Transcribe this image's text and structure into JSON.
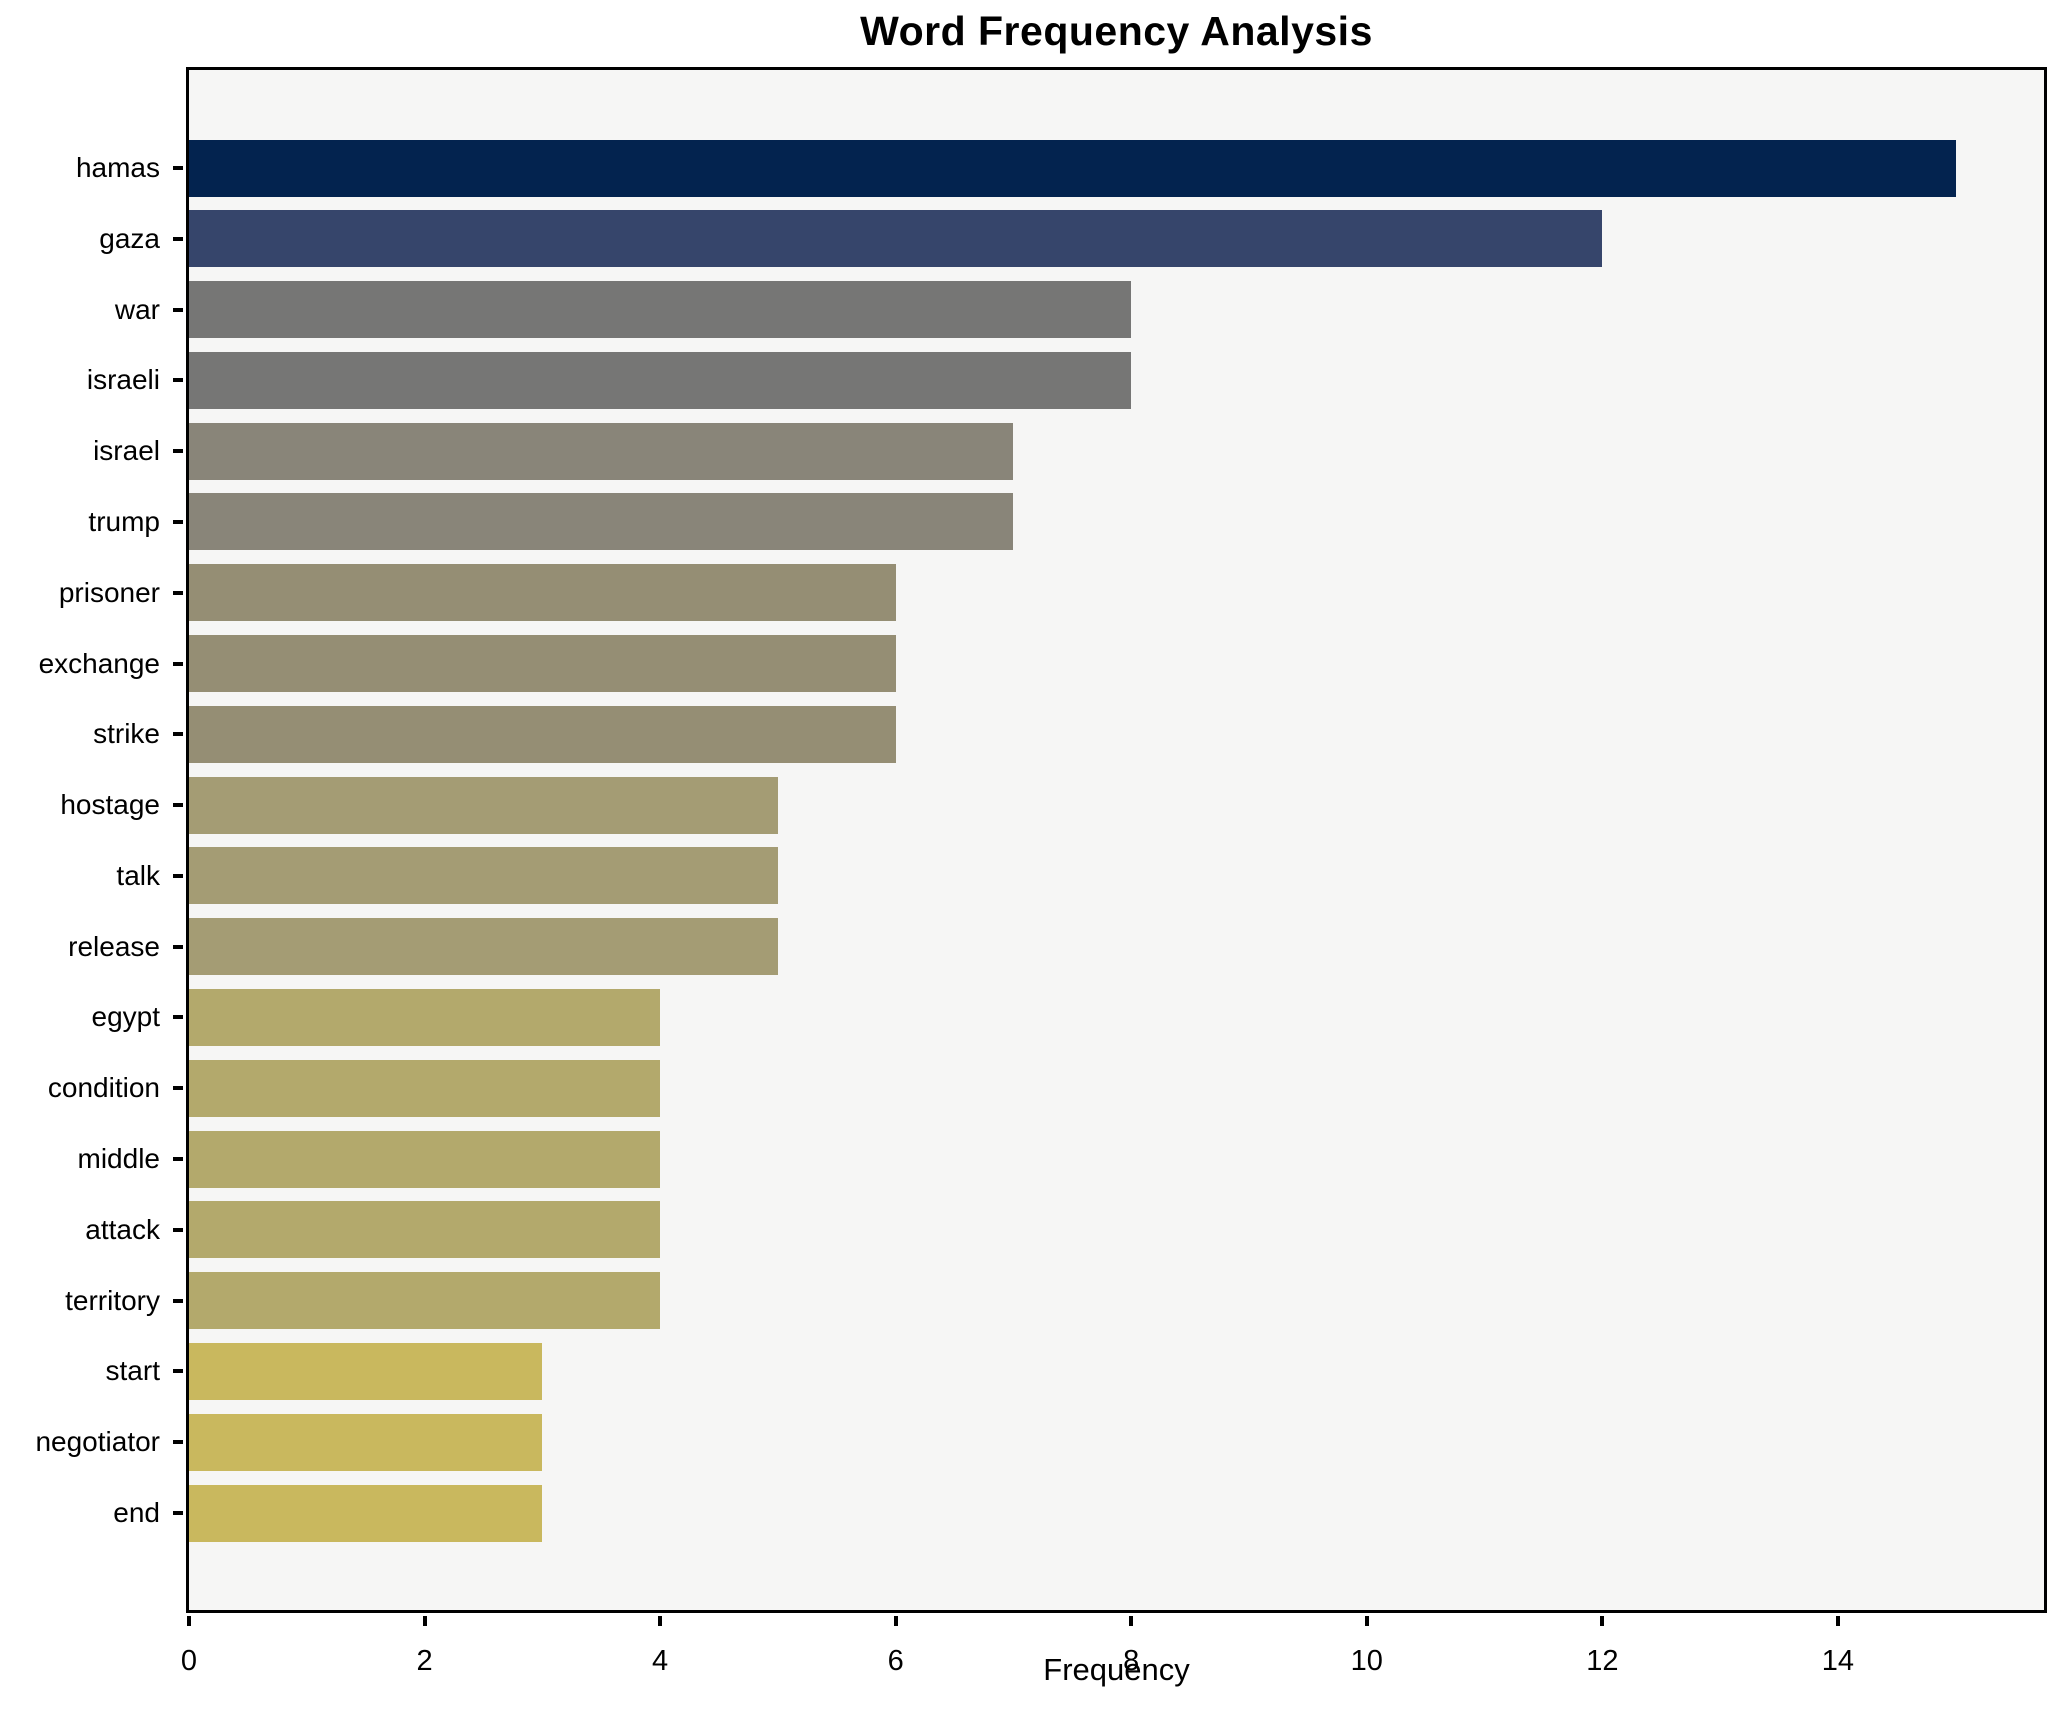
{
  "title": "Word Frequency Analysis",
  "chart_data": {
    "type": "bar",
    "orientation": "horizontal",
    "title": "Word Frequency Analysis",
    "xlabel": "Frequency",
    "ylabel": "",
    "categories": [
      "hamas",
      "gaza",
      "war",
      "israeli",
      "israel",
      "trump",
      "prisoner",
      "exchange",
      "strike",
      "hostage",
      "talk",
      "release",
      "egypt",
      "condition",
      "middle",
      "attack",
      "territory",
      "start",
      "negotiator",
      "end"
    ],
    "values": [
      15,
      12,
      8,
      8,
      7,
      7,
      6,
      6,
      6,
      5,
      5,
      5,
      4,
      4,
      4,
      4,
      4,
      3,
      3,
      3
    ],
    "bar_colors": [
      "#03234f",
      "#36456b",
      "#767675",
      "#767675",
      "#898579",
      "#898579",
      "#958e74",
      "#958e74",
      "#958e74",
      "#a49c74",
      "#a49c74",
      "#a49c74",
      "#b3a96c",
      "#b3a96c",
      "#b3a96c",
      "#b3a96c",
      "#b3a96c",
      "#c9b85e",
      "#c9b85e",
      "#c9b85e"
    ],
    "xlim": [
      0,
      15.75
    ],
    "xticks": [
      0,
      2,
      4,
      6,
      8,
      10,
      12,
      14
    ],
    "grid": false,
    "legend": null,
    "plot_bg_color": "#f6f6f5",
    "figure_bg_color": "#ffffff",
    "spine_color": "#000000",
    "text_color": "#000000"
  }
}
